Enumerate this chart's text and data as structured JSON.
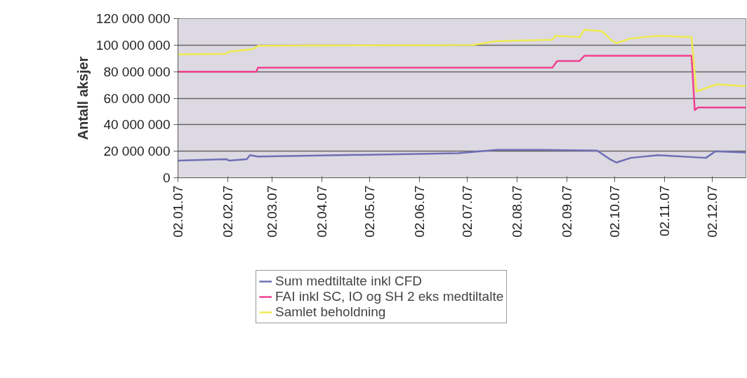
{
  "chart_data": {
    "type": "line",
    "ylabel": "Antall aksjer",
    "xlim": [
      "2007-01-02",
      "2007-12-23"
    ],
    "xticks": [
      {
        "value": "2007-01-02",
        "label": "02.01.07"
      },
      {
        "value": "2007-02-02",
        "label": "02.02.07"
      },
      {
        "value": "2007-03-02",
        "label": "02.03.07"
      },
      {
        "value": "2007-04-02",
        "label": "02.04.07"
      },
      {
        "value": "2007-05-02",
        "label": "02.05.07"
      },
      {
        "value": "2007-06-02",
        "label": "02.06.07"
      },
      {
        "value": "2007-07-02",
        "label": "02.07.07"
      },
      {
        "value": "2007-08-02",
        "label": "02.08.07"
      },
      {
        "value": "2007-09-02",
        "label": "02.09.07"
      },
      {
        "value": "2007-10-02",
        "label": "02.10.07"
      },
      {
        "value": "2007-11-02",
        "label": "02.11.07"
      },
      {
        "value": "2007-12-02",
        "label": "02.12.07"
      }
    ],
    "ylim": [
      0,
      120000000
    ],
    "yticks": [
      {
        "value": 0,
        "label": "0"
      },
      {
        "value": 20000000,
        "label": "20 000 000"
      },
      {
        "value": 40000000,
        "label": "40 000 000"
      },
      {
        "value": 60000000,
        "label": "60 000 000"
      },
      {
        "value": 80000000,
        "label": "80 000 000"
      },
      {
        "value": 100000000,
        "label": "100 000 000"
      },
      {
        "value": 120000000,
        "label": "120 000 000"
      }
    ],
    "grid": "y",
    "legend": "bottom",
    "marker": "none",
    "line_style": "solid",
    "series": [
      {
        "name": "Sum medtiltalte inkl CFD",
        "color": "#6f6fb4",
        "x": [
          "2007-01-02",
          "2007-02-01",
          "2007-02-03",
          "2007-02-14",
          "2007-02-16",
          "2007-02-21",
          "2007-06-26",
          "2007-07-20",
          "2007-08-20",
          "2007-09-21",
          "2007-09-29",
          "2007-10-03",
          "2007-10-12",
          "2007-10-29",
          "2007-11-28",
          "2007-12-04",
          "2007-12-23"
        ],
        "values": [
          13000000,
          14000000,
          13000000,
          14000000,
          17000000,
          16000000,
          18500000,
          21000000,
          21000000,
          20500000,
          14000000,
          11500000,
          15000000,
          17000000,
          15000000,
          20000000,
          19000000
        ]
      },
      {
        "name": "FAI inkl SC, IO og SH 2 eks medtiltalte",
        "color": "#f0408f",
        "x": [
          "2007-01-02",
          "2007-02-20",
          "2007-02-21",
          "2007-08-24",
          "2007-08-27",
          "2007-09-10",
          "2007-09-13",
          "2007-11-19",
          "2007-11-21",
          "2007-11-23",
          "2007-12-23"
        ],
        "values": [
          80000000,
          80000000,
          83000000,
          83000000,
          88000000,
          88000000,
          92000000,
          92000000,
          51000000,
          53000000,
          53000000
        ]
      },
      {
        "name": "Samlet beholdning",
        "color": "#eeea50",
        "x": [
          "2007-01-02",
          "2007-02-01",
          "2007-02-03",
          "2007-02-18",
          "2007-02-21",
          "2007-07-05",
          "2007-07-20",
          "2007-08-24",
          "2007-08-26",
          "2007-09-10",
          "2007-09-13",
          "2007-09-24",
          "2007-09-30",
          "2007-10-03",
          "2007-10-12",
          "2007-10-29",
          "2007-11-19",
          "2007-11-22",
          "2007-12-05",
          "2007-12-23"
        ],
        "values": [
          93000000,
          93500000,
          95000000,
          97000000,
          99500000,
          100000000,
          103000000,
          104000000,
          107000000,
          106000000,
          111500000,
          110500000,
          103500000,
          101500000,
          105000000,
          107000000,
          106000000,
          65000000,
          70500000,
          69000000
        ]
      }
    ]
  }
}
